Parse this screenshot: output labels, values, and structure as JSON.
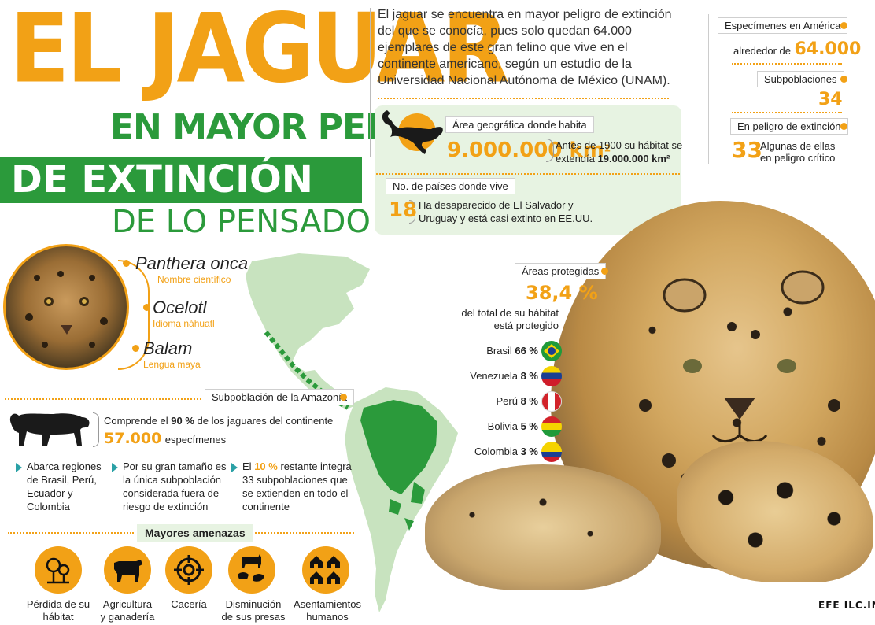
{
  "title": {
    "line1": "EL JAGUAR",
    "line2": "EN MAYOR PELIGRO",
    "line3": "DE EXTINCIÓN",
    "line4": "DE LO PENSADO"
  },
  "intro": "El jaguar se encuentra en mayor peligro de extinción del que se conocía, pues solo quedan 64.000 ejemplares de este gran felino que vive en el continente americano, según un estudio de la Universidad Nacional Autónoma de México (UNAM).",
  "stats": {
    "specimens_label": "Especímenes en América",
    "specimens_prefix": "alrededor de",
    "specimens_value": "64.000",
    "subpop_label": "Subpoblaciones",
    "subpop_value": "34",
    "danger_label": "En peligro de extinción",
    "danger_value": "33",
    "danger_note_1": "Algunas de ellas",
    "danger_note_2": "en peligro crítico"
  },
  "habitat": {
    "area_label": "Área geográfica donde habita",
    "area_value": "9.000.000 km",
    "area_sup": "2",
    "area_note_1": "Antes de 1900 su hábitat se",
    "area_note_2_prefix": "extendía",
    "area_note_2_value": "19.000.000 km²",
    "countries_label": "No. de países donde vive",
    "countries_value": "18",
    "countries_note_1": "Ha desaparecido de El Salvador y",
    "countries_note_2": "Uruguay y está casi extinto en EE.UU."
  },
  "names": [
    {
      "name": "Panthera onca",
      "sub": "Nombre científico"
    },
    {
      "name": "Ocelotl",
      "sub": "Idioma náhuatl"
    },
    {
      "name": "Balam",
      "sub": "Lengua maya"
    }
  ],
  "amazon": {
    "label": "Subpoblación de la Amazonía",
    "text_prefix": "Comprende el",
    "text_pct": "90 %",
    "text_suffix": "de los jaguares del continente",
    "specimens_value": "57.000",
    "specimens_word": "especímenes",
    "bullets": [
      {
        "lines": [
          "Abarca regiones",
          "de Brasil, Perú,",
          "Ecuador y",
          "Colombia"
        ]
      },
      {
        "lines": [
          "Por su gran tamaño es",
          "la única subpoblación",
          "considerada fuera de",
          "riesgo de extinción"
        ]
      },
      {
        "prefix": "El",
        "pct": "10 %",
        "lines": [
          "restante integra",
          "33 subpoblaciones que",
          "se extienden en todo el",
          "continente"
        ]
      }
    ]
  },
  "threats": {
    "label": "Mayores amenazas",
    "items": [
      {
        "icon": "tree-icon",
        "label1": "Pérdida de su",
        "label2": "hábitat"
      },
      {
        "icon": "cow-icon",
        "label1": "Agricultura",
        "label2": "y ganadería"
      },
      {
        "icon": "crosshair-icon",
        "label1": "Cacería",
        "label2": ""
      },
      {
        "icon": "prey-icon",
        "label1": "Disminución",
        "label2": "de sus presas"
      },
      {
        "icon": "houses-icon",
        "label1": "Asentamientos",
        "label2": "humanos"
      }
    ]
  },
  "protected": {
    "label": "Áreas protegidas",
    "value": "38,4 %",
    "note_1": "del total de su hábitat",
    "note_2": "está protegido",
    "countries": [
      {
        "name": "Brasil",
        "pct": "66 %",
        "flag": "brazil-flag"
      },
      {
        "name": "Venezuela",
        "pct": "8 %",
        "flag": "venezuela-flag"
      },
      {
        "name": "Perú",
        "pct": "8 %",
        "flag": "peru-flag"
      },
      {
        "name": "Bolivia",
        "pct": "5 %",
        "flag": "bolivia-flag"
      },
      {
        "name": "Colombia",
        "pct": "3 %",
        "flag": "colombia-flag"
      }
    ]
  },
  "logo": "EFE ILC.INK",
  "colors": {
    "accent": "#f2a116",
    "green": "#2b9a3b",
    "panel": "#e7f3e2"
  }
}
